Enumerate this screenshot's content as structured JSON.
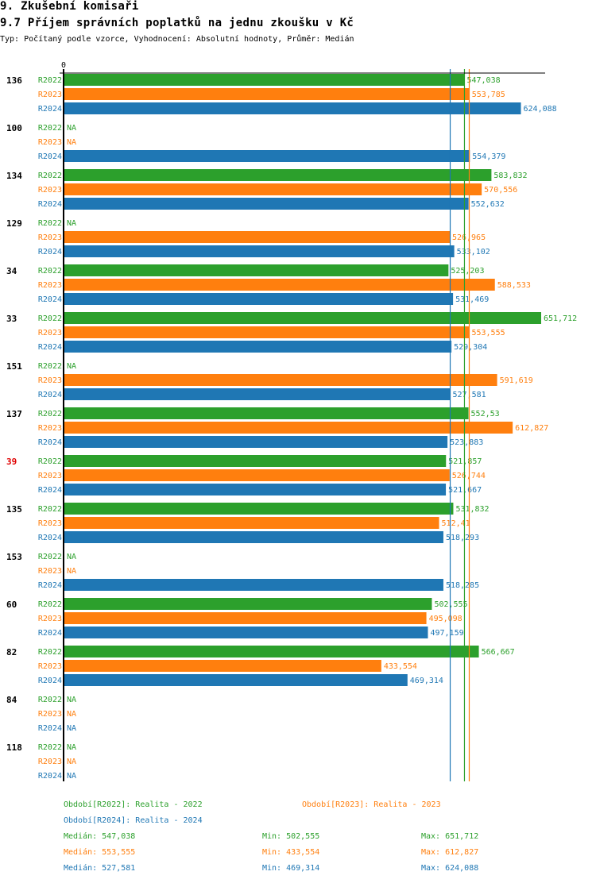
{
  "header": {
    "section": "9. Zkušební komisaři",
    "title": "9.7 Příjem správních poplatků na jednu zkoušku v Kč",
    "subtitle": "Typ: Počítaný podle vzorce, Vyhodnocení: Absolutní hodnoty, Průměr: Medián"
  },
  "colors": {
    "R2022": "#2ca02c",
    "R2023": "#ff7f0e",
    "R2024": "#1f77b4",
    "highlight": "#e00000",
    "axis": "#000000"
  },
  "chart_data": {
    "type": "bar",
    "orientation": "horizontal",
    "title": "9.7 Příjem správních poplatků na jednu zkoušku v Kč",
    "x_tick_labels": [
      "0"
    ],
    "xlim": [
      0,
      651712
    ],
    "grid": false,
    "series_names": [
      "R2022",
      "R2023",
      "R2024"
    ],
    "na_label": "NA",
    "categories": [
      {
        "label": "136",
        "highlight": false,
        "values": [
          547038,
          553785,
          624088
        ],
        "labels": [
          "547,038",
          "553,785",
          "624,088"
        ]
      },
      {
        "label": "100",
        "highlight": false,
        "values": [
          null,
          null,
          554379
        ],
        "labels": [
          "NA",
          "NA",
          "554,379"
        ]
      },
      {
        "label": "134",
        "highlight": false,
        "values": [
          583832,
          570556,
          552632
        ],
        "labels": [
          "583,832",
          "570,556",
          "552,632"
        ]
      },
      {
        "label": "129",
        "highlight": false,
        "values": [
          null,
          526965,
          533102
        ],
        "labels": [
          "NA",
          "526,965",
          "533,102"
        ]
      },
      {
        "label": "34",
        "highlight": false,
        "values": [
          525203,
          588533,
          531469
        ],
        "labels": [
          "525,203",
          "588,533",
          "531,469"
        ]
      },
      {
        "label": "33",
        "highlight": false,
        "values": [
          651712,
          553555,
          529304
        ],
        "labels": [
          "651,712",
          "553,555",
          "529,304"
        ]
      },
      {
        "label": "151",
        "highlight": false,
        "values": [
          null,
          591619,
          527581
        ],
        "labels": [
          "NA",
          "591,619",
          "527,581"
        ]
      },
      {
        "label": "137",
        "highlight": false,
        "values": [
          552530,
          612827,
          523883
        ],
        "labels": [
          "552,53",
          "612,827",
          "523,883"
        ]
      },
      {
        "label": "39",
        "highlight": true,
        "values": [
          521857,
          526744,
          521667
        ],
        "labels": [
          "521,857",
          "526,744",
          "521,667"
        ]
      },
      {
        "label": "135",
        "highlight": false,
        "values": [
          531832,
          512410,
          518293
        ],
        "labels": [
          "531,832",
          "512,41",
          "518,293"
        ]
      },
      {
        "label": "153",
        "highlight": false,
        "values": [
          null,
          null,
          518285
        ],
        "labels": [
          "NA",
          "NA",
          "518,285"
        ]
      },
      {
        "label": "60",
        "highlight": false,
        "values": [
          502555,
          495098,
          497159
        ],
        "labels": [
          "502,555",
          "495,098",
          "497,159"
        ]
      },
      {
        "label": "82",
        "highlight": false,
        "values": [
          566667,
          433554,
          469314
        ],
        "labels": [
          "566,667",
          "433,554",
          "469,314"
        ]
      },
      {
        "label": "84",
        "highlight": false,
        "values": [
          null,
          null,
          null
        ],
        "labels": [
          "NA",
          "NA",
          "NA"
        ]
      },
      {
        "label": "118",
        "highlight": false,
        "values": [
          null,
          null,
          null
        ],
        "labels": [
          "NA",
          "NA",
          "NA"
        ]
      }
    ],
    "median_lines": [
      {
        "series": "R2022",
        "value": 547038
      },
      {
        "series": "R2023",
        "value": 553555
      },
      {
        "series": "R2024",
        "value": 527581
      }
    ]
  },
  "legend": {
    "periods": [
      {
        "series": "R2022",
        "text": "Období[R2022]: Realita - 2022"
      },
      {
        "series": "R2023",
        "text": "Období[R2023]: Realita - 2023"
      },
      {
        "series": "R2024",
        "text": "Období[R2024]: Realita - 2024"
      }
    ],
    "stats": [
      {
        "series": "R2022",
        "median": "Medián: 547,038",
        "min": "Min: 502,555",
        "max": "Max: 651,712"
      },
      {
        "series": "R2023",
        "median": "Medián: 553,555",
        "min": "Min: 433,554",
        "max": "Max: 612,827"
      },
      {
        "series": "R2024",
        "median": "Medián: 527,581",
        "min": "Min: 469,314",
        "max": "Max: 624,088"
      }
    ]
  }
}
